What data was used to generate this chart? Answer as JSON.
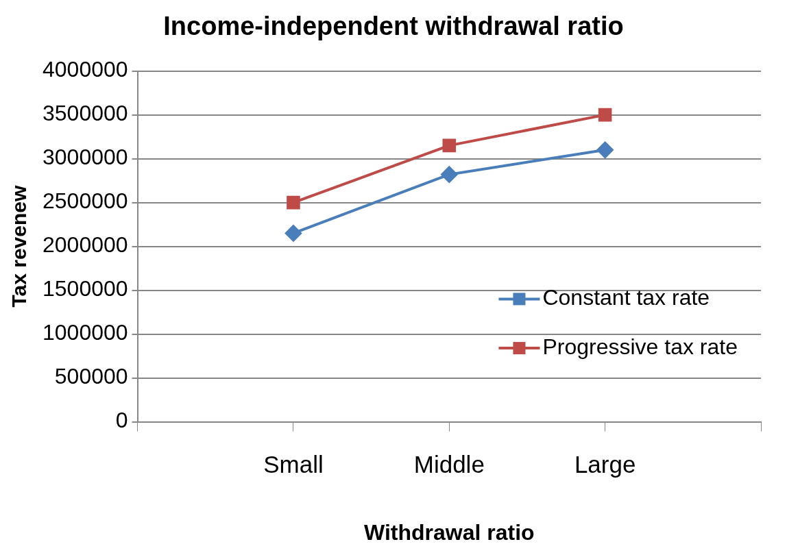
{
  "chart_data": {
    "type": "line",
    "title": "Income-independent withdrawal ratio",
    "xlabel": "Withdrawal ratio",
    "ylabel": "Tax revenew",
    "categories": [
      null,
      "Small",
      "Middle",
      "Large",
      null
    ],
    "series": [
      {
        "name": "Constant tax rate",
        "color": "#4a7ebb",
        "marker": "diamond",
        "values": [
          null,
          2150000,
          2820000,
          3100000,
          null
        ]
      },
      {
        "name": "Progressive tax rate",
        "color": "#be4b48",
        "marker": "square",
        "values": [
          null,
          2500000,
          3150000,
          3500000,
          null
        ]
      }
    ],
    "ylim": [
      0,
      4000000
    ],
    "yticks": [
      0,
      500000,
      1000000,
      1500000,
      2000000,
      2500000,
      3000000,
      3500000,
      4000000
    ],
    "grid": "y",
    "legend": "bottom right",
    "line_style": "solid"
  }
}
